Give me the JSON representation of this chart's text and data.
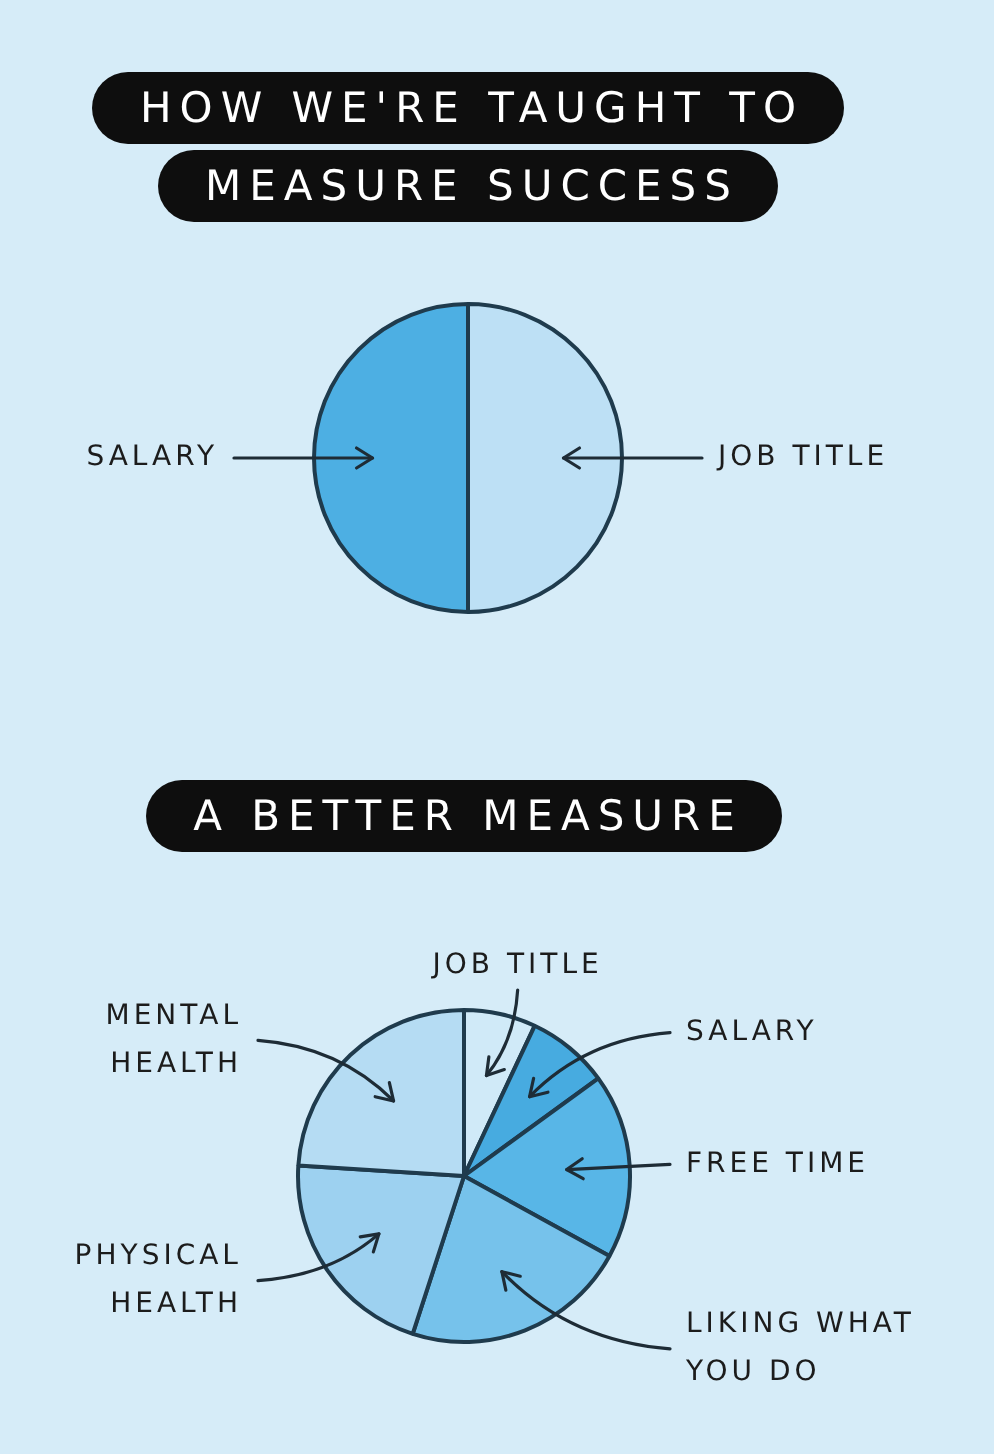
{
  "chart_data": [
    {
      "type": "pie",
      "title": "HOW WE'RE TAUGHT TO MEASURE SUCCESS",
      "categories": [
        "JOB TITLE",
        "SALARY"
      ],
      "values": [
        50,
        50
      ],
      "colors": [
        "#bde0f5",
        "#4dafe3"
      ]
    },
    {
      "type": "pie",
      "title": "A BETTER MEASURE",
      "categories": [
        "JOB TITLE",
        "SALARY",
        "FREE TIME",
        "LIKING WHAT YOU DO",
        "PHYSICAL HEALTH",
        "MENTAL HEALTH"
      ],
      "values": [
        7,
        8,
        18,
        22,
        21,
        24
      ],
      "colors": [
        "#d0eaf8",
        "#47abe0",
        "#58b6e7",
        "#76c2eb",
        "#9dd1f0",
        "#b5dcf3"
      ]
    }
  ]
}
